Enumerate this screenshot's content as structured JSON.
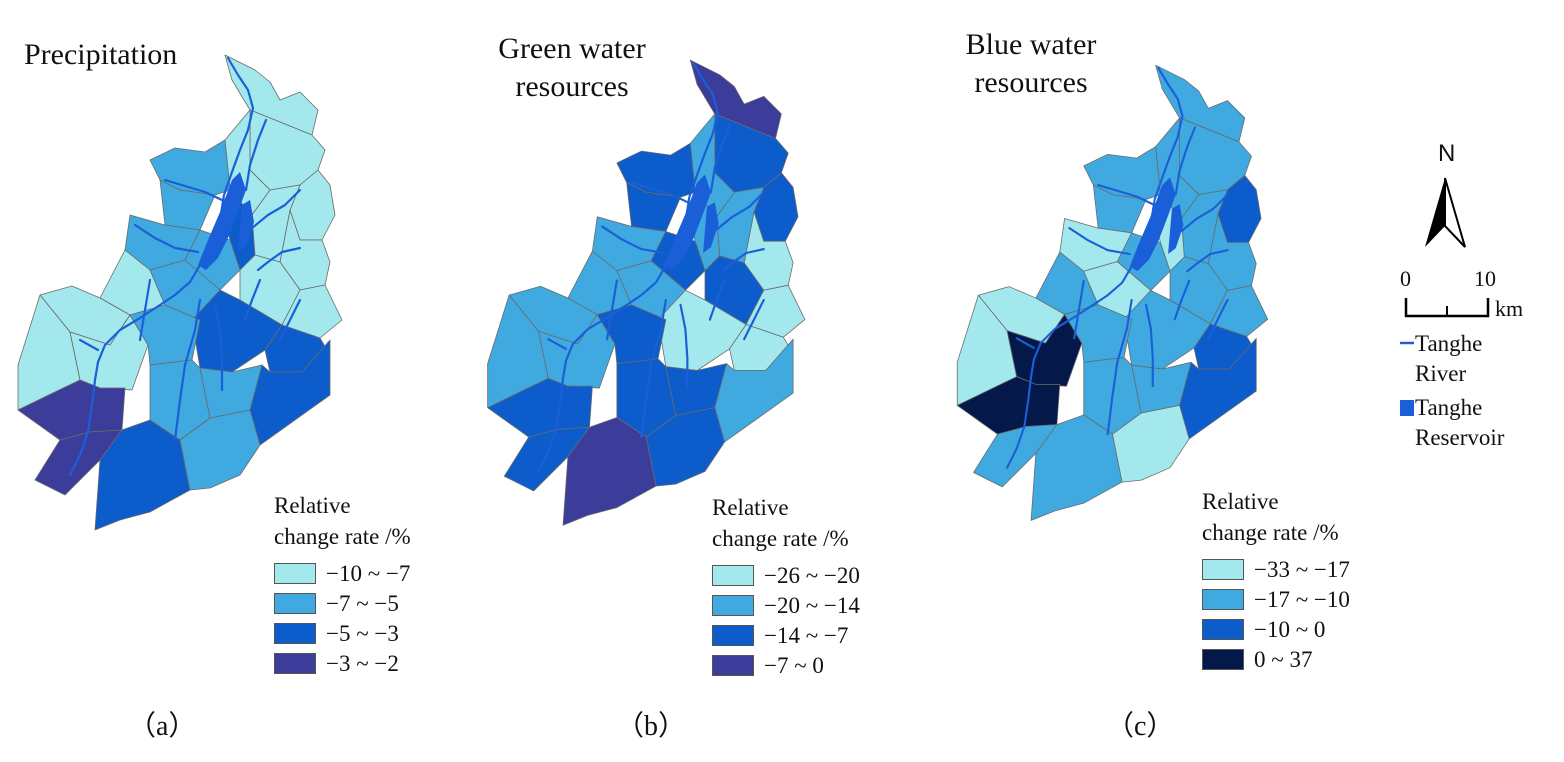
{
  "panels": [
    {
      "id": "a",
      "title": "Precipitation",
      "label": "（a）",
      "legend": {
        "title": "Relative change rate /%",
        "classes": [
          {
            "label": "−10 ~ −7",
            "color": "#a3e8ec"
          },
          {
            "label": "−7 ~ −5",
            "color": "#3fa9e0"
          },
          {
            "label": "−5 ~ −3",
            "color": "#0d5ccc"
          },
          {
            "label": "−3 ~ −2",
            "color": "#3c3c9a"
          }
        ]
      }
    },
    {
      "id": "b",
      "title": "Green water resources",
      "label": "（b）",
      "legend": {
        "title": "Relative change rate /%",
        "classes": [
          {
            "label": "−26 ~ −20",
            "color": "#a3e8ec"
          },
          {
            "label": "−20 ~ −14",
            "color": "#3fa9e0"
          },
          {
            "label": "−14 ~ −7",
            "color": "#0d5ccc"
          },
          {
            "label": "−7 ~ 0",
            "color": "#3c3c9a"
          }
        ]
      }
    },
    {
      "id": "c",
      "title": "Blue water resources",
      "label": "（c）",
      "legend": {
        "title": "Relative change rate /%",
        "classes": [
          {
            "label": "−33 ~ −17",
            "color": "#a3e8ec"
          },
          {
            "label": "−17 ~ −10",
            "color": "#3fa9e0"
          },
          {
            "label": "−10 ~ 0",
            "color": "#0d5ccc"
          },
          {
            "label": "0 ~ 37",
            "color": "#05184a"
          }
        ]
      }
    }
  ],
  "north_arrow": {
    "label": "N"
  },
  "scale_bar": {
    "start": "0",
    "end": "10",
    "unit": "km"
  },
  "key": {
    "river": {
      "label": "Tanghe\nRiver",
      "color": "#1a5fd8"
    },
    "reservoir": {
      "label": "Tanghe\nReservoir",
      "color": "#1a5fd8"
    }
  }
}
